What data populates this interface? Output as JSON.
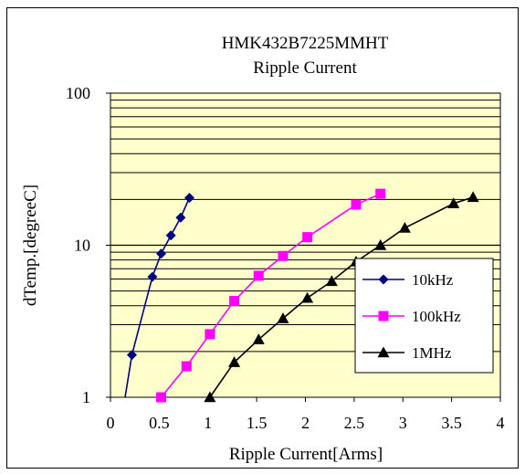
{
  "chart_data": {
    "type": "line",
    "title": "HMK432B7225MMHT",
    "subtitle": "Ripple Current",
    "xlabel": "Ripple Current[Arms]",
    "ylabel": "dTemp.[degreeC]",
    "xlim": [
      0,
      4
    ],
    "ylim": [
      1,
      100
    ],
    "y_scale": "log",
    "x_ticks": [
      "0",
      "0.5",
      "1",
      "1.5",
      "2",
      "2.5",
      "3",
      "3.5",
      "4"
    ],
    "y_ticks": [
      "1",
      "10",
      "100"
    ],
    "grid": true,
    "plot_background": "#ffffcc",
    "legend_position": "lower-right",
    "series": [
      {
        "name": "10kHz",
        "color": "#000080",
        "marker": "diamond",
        "x": [
          0.15,
          0.22,
          0.43,
          0.52,
          0.62,
          0.72,
          0.81
        ],
        "y": [
          1.0,
          1.9,
          6.2,
          8.8,
          11.6,
          15.2,
          20.5
        ]
      },
      {
        "name": "100kHz",
        "color": "#ff00ff",
        "marker": "square",
        "x": [
          0.52,
          0.78,
          1.02,
          1.27,
          1.52,
          1.77,
          2.02,
          2.52,
          2.77
        ],
        "y": [
          1.0,
          1.6,
          2.6,
          4.3,
          6.3,
          8.5,
          11.3,
          18.5,
          21.8
        ]
      },
      {
        "name": "1MHz",
        "color": "#000000",
        "marker": "triangle",
        "x": [
          1.02,
          1.27,
          1.52,
          1.77,
          2.02,
          2.27,
          2.52,
          2.77,
          3.02,
          3.52,
          3.72
        ],
        "y": [
          1.0,
          1.7,
          2.4,
          3.3,
          4.5,
          5.8,
          7.8,
          10.0,
          13.0,
          18.8,
          20.7
        ]
      }
    ]
  }
}
